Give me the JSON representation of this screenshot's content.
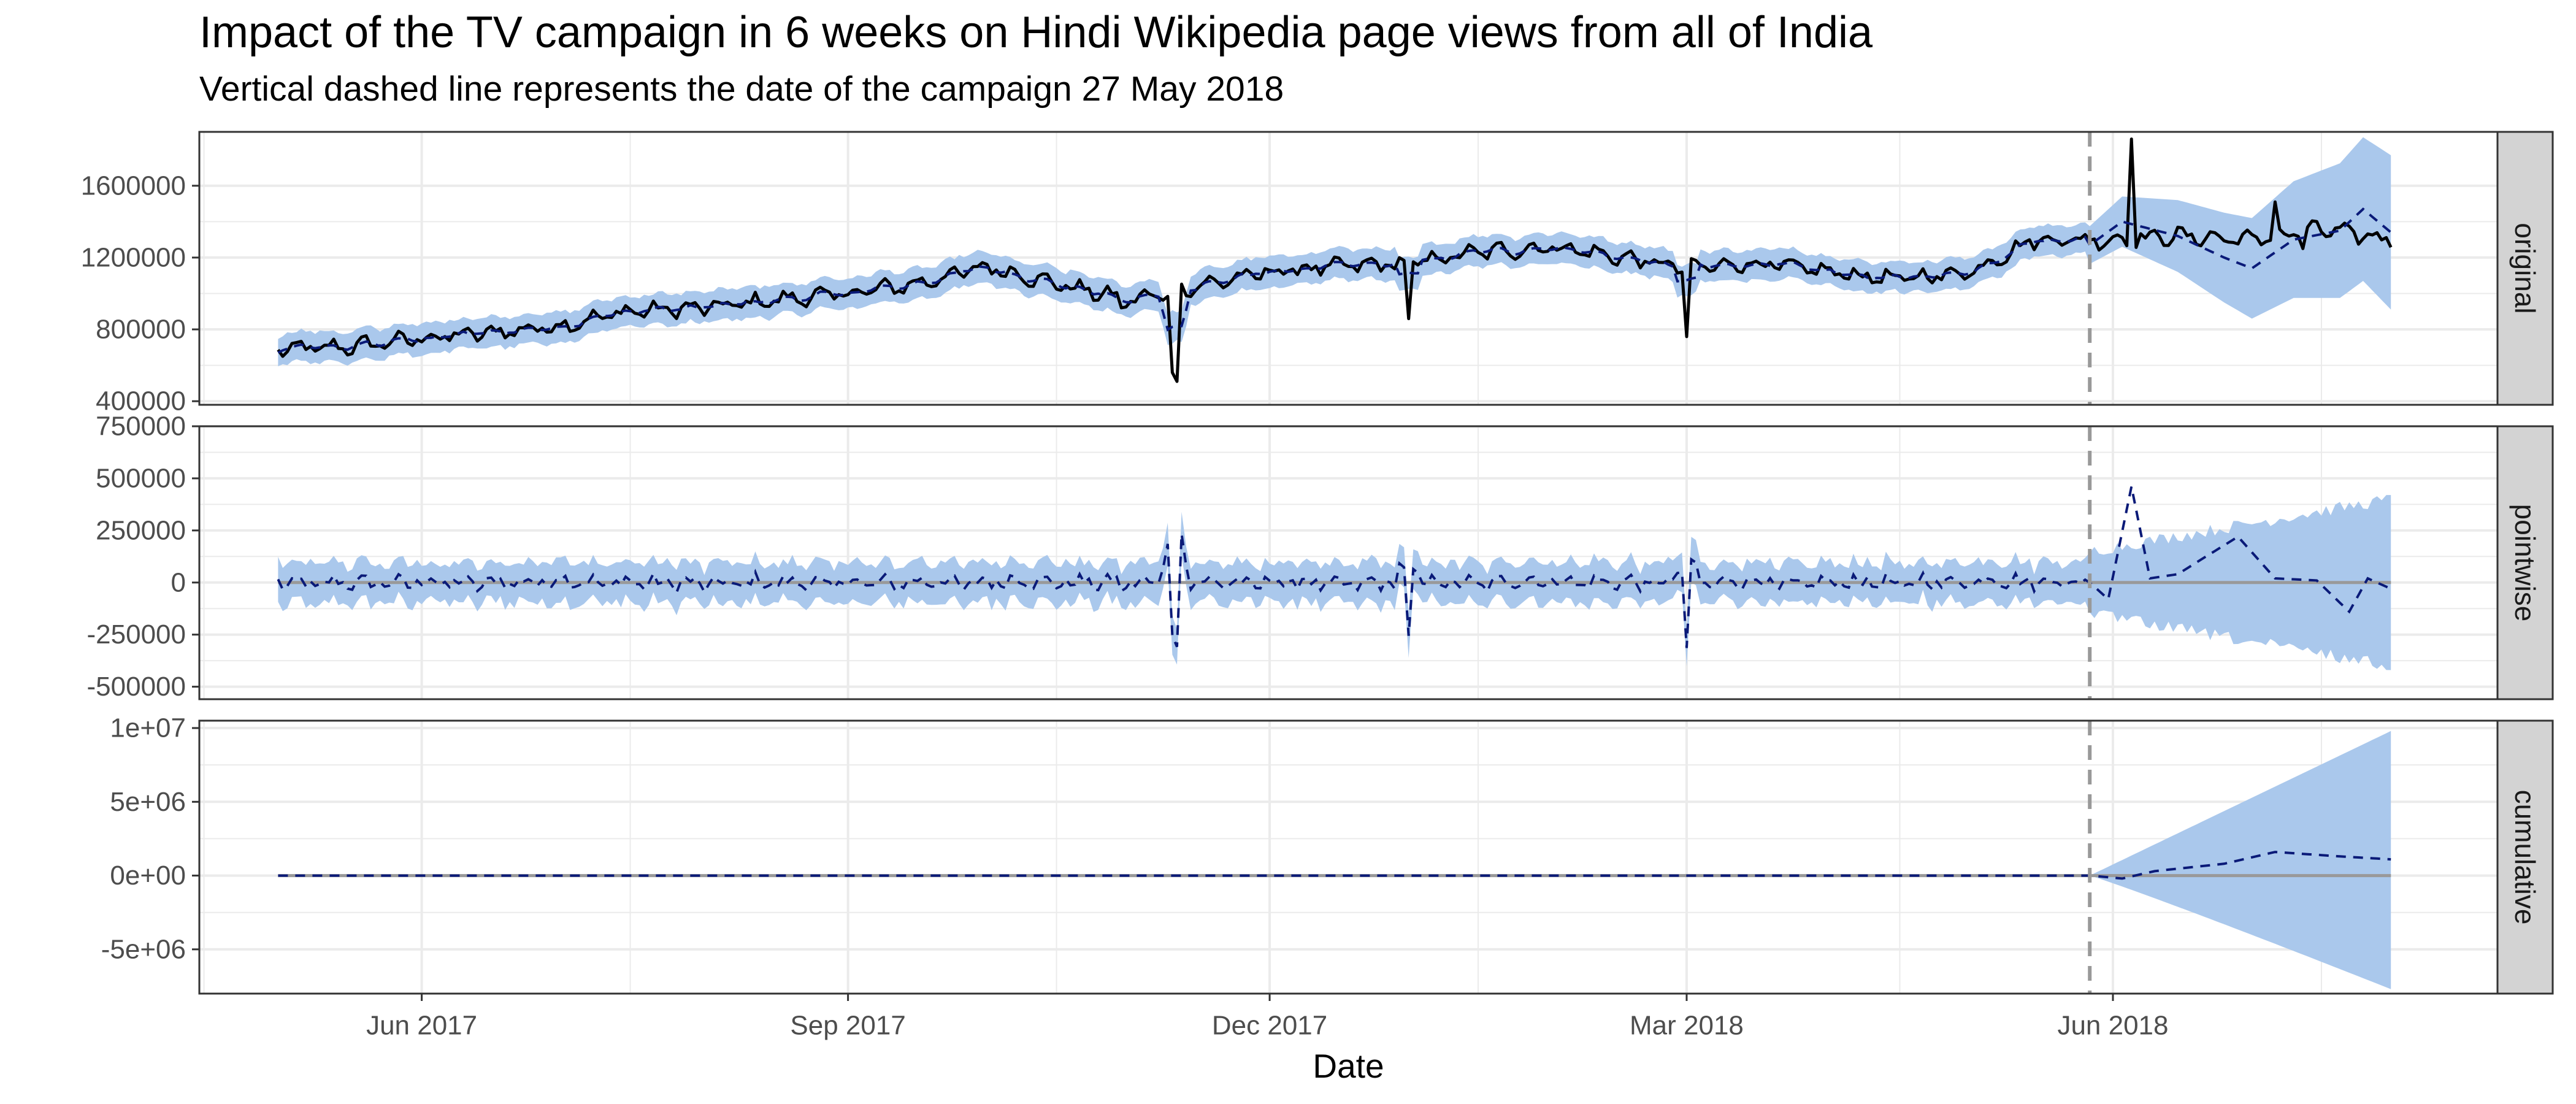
{
  "title": "Impact of the TV campaign in 6 weeks on Hindi Wikipedia page views from all of India",
  "subtitle": "Vertical dashed line represents the date of the campaign 27 May 2018",
  "colors": {
    "band": "#aac8ec",
    "observed_line": "#000000",
    "predicted_line": "#0a1a78",
    "zero_line": "#999999",
    "intervention_line": "#999999",
    "strip_bg": "#d3d3d3",
    "grid": "#ebebeb"
  },
  "chart_data": {
    "type": "line",
    "xlabel": "Date",
    "x_ticks": [
      "Jun 2017",
      "Sep 2017",
      "Dec 2017",
      "Mar 2018",
      "Jun 2018"
    ],
    "x_range": [
      "2017-04-14",
      "2018-08-23"
    ],
    "series_range": [
      "2017-05-01",
      "2018-07-31"
    ],
    "intervention_date": "2018-05-27",
    "grid": true,
    "panels": [
      {
        "strip": "original",
        "ylim": [
          380000,
          1900000
        ],
        "yticks": [
          400000,
          800000,
          1200000,
          1600000
        ],
        "ytick_labels": [
          "400000",
          "800000",
          "1200000",
          "1600000"
        ],
        "observed_anchors": [
          [
            "2017-05-01",
            690000
          ],
          [
            "2017-05-15",
            700000
          ],
          [
            "2017-06-01",
            750000
          ],
          [
            "2017-06-15",
            780000
          ],
          [
            "2017-07-01",
            820000
          ],
          [
            "2017-07-15",
            900000
          ],
          [
            "2017-08-01",
            920000
          ],
          [
            "2017-08-15",
            960000
          ],
          [
            "2017-09-01",
            1000000
          ],
          [
            "2017-09-15",
            1050000
          ],
          [
            "2017-10-01",
            1150000
          ],
          [
            "2017-10-15",
            1060000
          ],
          [
            "2017-11-01",
            960000
          ],
          [
            "2017-11-15",
            1040000
          ],
          [
            "2017-12-01",
            1120000
          ],
          [
            "2017-12-15",
            1150000
          ],
          [
            "2018-01-01",
            1170000
          ],
          [
            "2018-01-15",
            1230000
          ],
          [
            "2018-02-01",
            1260000
          ],
          [
            "2018-02-15",
            1200000
          ],
          [
            "2018-03-01",
            1140000
          ],
          [
            "2018-03-15",
            1170000
          ],
          [
            "2018-04-01",
            1120000
          ],
          [
            "2018-04-15",
            1080000
          ],
          [
            "2018-05-01",
            1120000
          ],
          [
            "2018-05-15",
            1300000
          ],
          [
            "2018-06-01",
            1300000
          ],
          [
            "2018-06-15",
            1320000
          ],
          [
            "2018-07-01",
            1300000
          ],
          [
            "2018-07-15",
            1360000
          ],
          [
            "2018-07-31",
            1300000
          ]
        ],
        "observed_events": [
          [
            "2017-10-30",
            920000
          ],
          [
            "2017-11-10",
            560000
          ],
          [
            "2017-11-11",
            510000
          ],
          [
            "2017-12-31",
            860000
          ],
          [
            "2018-03-01",
            760000
          ],
          [
            "2018-06-05",
            1860000
          ],
          [
            "2018-07-06",
            1510000
          ],
          [
            "2018-07-12",
            1250000
          ]
        ],
        "predicted_anchors": [
          [
            "2018-05-27",
            1270000
          ],
          [
            "2018-06-03",
            1400000
          ],
          [
            "2018-06-15",
            1320000
          ],
          [
            "2018-06-25",
            1200000
          ],
          [
            "2018-07-01",
            1140000
          ],
          [
            "2018-07-10",
            1300000
          ],
          [
            "2018-07-20",
            1350000
          ],
          [
            "2018-07-25",
            1470000
          ],
          [
            "2018-07-31",
            1340000
          ]
        ],
        "band_halfwidth": [
          75000,
          430000
        ]
      },
      {
        "strip": "pointwise",
        "ylim": [
          -560000,
          750000
        ],
        "yticks": [
          -500000,
          -250000,
          0,
          250000,
          500000,
          750000
        ],
        "ytick_labels": [
          "-500000",
          "-250000",
          "0",
          "250000",
          "500000",
          "750000"
        ],
        "effect_anchors": [
          [
            "2018-05-27",
            0
          ],
          [
            "2018-05-31",
            -80000
          ],
          [
            "2018-06-05",
            460000
          ],
          [
            "2018-06-09",
            20000
          ],
          [
            "2018-06-15",
            40000
          ],
          [
            "2018-06-20",
            110000
          ],
          [
            "2018-06-28",
            220000
          ],
          [
            "2018-07-06",
            20000
          ],
          [
            "2018-07-15",
            10000
          ],
          [
            "2018-07-22",
            -140000
          ],
          [
            "2018-07-26",
            20000
          ],
          [
            "2018-07-31",
            -30000
          ]
        ],
        "band_halfwidth": [
          80000,
          400000
        ]
      },
      {
        "strip": "cumulative",
        "ylim": [
          -8000000,
          10500000
        ],
        "yticks": [
          -5000000,
          0,
          5000000,
          10000000
        ],
        "ytick_labels": [
          "-5e+06",
          "0e+00",
          "5e+06",
          "1e+07"
        ],
        "cumulative_anchors": [
          [
            "2017-05-01",
            0
          ],
          [
            "2018-05-27",
            0
          ],
          [
            "2018-06-03",
            -200000
          ],
          [
            "2018-06-10",
            300000
          ],
          [
            "2018-06-25",
            800000
          ],
          [
            "2018-07-06",
            1600000
          ],
          [
            "2018-07-20",
            1300000
          ],
          [
            "2018-07-31",
            1100000
          ]
        ],
        "band_upper_end": 9800000,
        "band_lower_end": -7700000
      }
    ]
  }
}
